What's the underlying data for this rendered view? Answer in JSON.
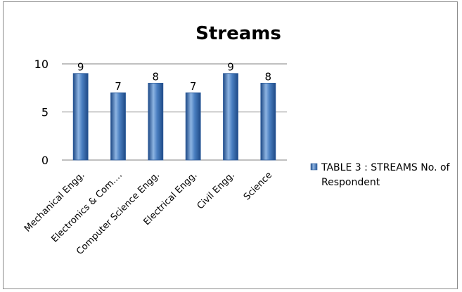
{
  "chart_data": {
    "type": "bar",
    "title": "Streams",
    "categories": [
      "Mechanical Engg.",
      "Electronics & Com....",
      "Computer Science Engg.",
      "Electrical Engg.",
      "Civil Engg.",
      "Science"
    ],
    "series": [
      {
        "name": "TABLE 3 : STREAMS No. of Respondent",
        "values": [
          9,
          7,
          8,
          7,
          9,
          8
        ]
      }
    ],
    "ylim": [
      0,
      10
    ],
    "yticks": [
      0,
      5,
      10
    ],
    "grid": true,
    "legend_position": "right",
    "legend_lines": [
      "TABLE 3 : STREAMS No. of",
      "Respondent"
    ],
    "colors": {
      "bar_edge": "#2b5a9a",
      "bar_dark": "#1f4a86",
      "bar_light": "#8db4e2",
      "bar_mid": "#4a7fc1",
      "grid": "#808080",
      "frame": "#8c8c8c"
    }
  }
}
